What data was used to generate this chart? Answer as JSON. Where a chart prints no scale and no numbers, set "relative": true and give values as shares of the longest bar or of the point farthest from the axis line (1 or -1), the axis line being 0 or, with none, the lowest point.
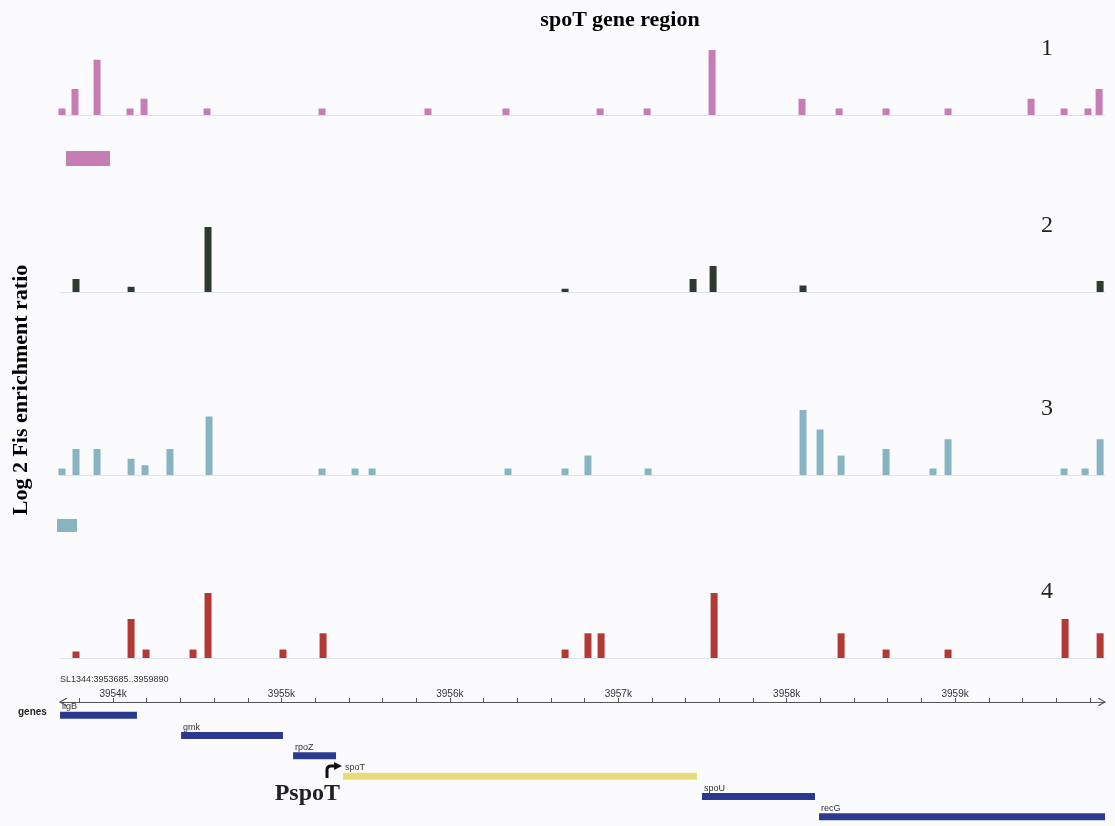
{
  "chart_data": [
    {
      "type": "bar",
      "title": "spoT gene region",
      "relative": true,
      "color": "#c67db4",
      "xlim": [
        3953685,
        3959890
      ],
      "annotations": [
        "1"
      ],
      "x": [
        3953697,
        3953774,
        3953905,
        3954101,
        3954184,
        3954558,
        3955241,
        3955870,
        3956333,
        3956892,
        3957171,
        3957557,
        3958091,
        3958311,
        3958590,
        3958958,
        3959451,
        3959647,
        3959789,
        3959855
      ],
      "values": [
        0.1,
        0.4,
        0.85,
        0.1,
        0.25,
        0.1,
        0.1,
        0.1,
        0.1,
        0.1,
        0.1,
        1,
        0.25,
        0.1,
        0.1,
        0.1,
        0.25,
        0.1,
        0.1,
        0.4
      ]
    },
    {
      "type": "bar",
      "relative": true,
      "color": "#2f3a30",
      "xlim": [
        3953685,
        3959890
      ],
      "annotations": [
        "2"
      ],
      "x": [
        3953780,
        3954107,
        3954564,
        3956684,
        3957444,
        3957563,
        3958097,
        3959861
      ],
      "values": [
        0.2,
        0.08,
        1,
        0.05,
        0.2,
        0.4,
        0.1,
        0.17
      ]
    },
    {
      "type": "bar",
      "ylabel": "Log 2 Fis enrichment ratio",
      "relative": true,
      "color": "#88b4c2",
      "xlim": [
        3953685,
        3959890
      ],
      "annotations": [
        "3"
      ],
      "x": [
        3953697,
        3953780,
        3953905,
        3954107,
        3954190,
        3954338,
        3954570,
        3955241,
        3955437,
        3955538,
        3956345,
        3956684,
        3956820,
        3957177,
        3958097,
        3958198,
        3958323,
        3958590,
        3958869,
        3958958,
        3959647,
        3959772,
        3959861
      ],
      "values": [
        0.1,
        0.4,
        0.4,
        0.25,
        0.15,
        0.4,
        0.9,
        0.1,
        0.1,
        0.1,
        0.1,
        0.1,
        0.3,
        0.1,
        1,
        0.7,
        0.3,
        0.4,
        0.1,
        0.55,
        0.1,
        0.1,
        0.55
      ]
    },
    {
      "type": "bar",
      "relative": true,
      "color": "#b33a34",
      "xlim": [
        3953685,
        3959890
      ],
      "annotations": [
        "4"
      ],
      "x": [
        3953780,
        3954107,
        3954196,
        3954475,
        3954564,
        3955009,
        3955247,
        3956684,
        3956820,
        3956898,
        3957569,
        3958323,
        3958590,
        3958958,
        3959653,
        3959861
      ],
      "values": [
        0.1,
        0.6,
        0.13,
        0.13,
        1,
        0.13,
        0.38,
        0.13,
        0.38,
        0.38,
        1,
        0.38,
        0.13,
        0.13,
        0.6,
        0.38
      ]
    },
    {
      "type": "bar",
      "orientation": "horizontal",
      "title": "genes",
      "categories": [
        "ligB",
        "gmk",
        "rpoZ",
        "spoT",
        "spoU",
        "recG"
      ],
      "xlim": [
        3953685,
        3959890
      ],
      "tick_labels": "x",
      "base": [
        3953685,
        3954404,
        3955069,
        3955365,
        3957497,
        3958192
      ],
      "values": [
        457,
        605,
        255,
        2102,
        671,
        1698
      ],
      "colors": [
        "#2b3a8f",
        "#2b3a8f",
        "#2b3a8f",
        "#e6dc78",
        "#2b3a8f",
        "#2b3a8f"
      ],
      "annotations": [
        "SL1344:3953685..3959890",
        "PspoT"
      ],
      "xticks": [
        {
          "value": 3953800,
          "label": null
        },
        {
          "value": 3954000,
          "label": "3954k"
        },
        {
          "value": 3954200,
          "label": null
        },
        {
          "value": 3954400,
          "label": null
        },
        {
          "value": 3954600,
          "label": null
        },
        {
          "value": 3954800,
          "label": null
        },
        {
          "value": 3955000,
          "label": "3955k"
        },
        {
          "value": 3955200,
          "label": null
        },
        {
          "value": 3955400,
          "label": null
        },
        {
          "value": 3955600,
          "label": null
        },
        {
          "value": 3955800,
          "label": null
        },
        {
          "value": 3956000,
          "label": "3956k"
        },
        {
          "value": 3956200,
          "label": null
        },
        {
          "value": 3956400,
          "label": null
        },
        {
          "value": 3956600,
          "label": null
        },
        {
          "value": 3956800,
          "label": null
        },
        {
          "value": 3957000,
          "label": "3957k"
        },
        {
          "value": 3957200,
          "label": null
        },
        {
          "value": 3957400,
          "label": null
        },
        {
          "value": 3957600,
          "label": null
        },
        {
          "value": 3957800,
          "label": null
        },
        {
          "value": 3958000,
          "label": "3958k"
        },
        {
          "value": 3958200,
          "label": null
        },
        {
          "value": 3958400,
          "label": null
        },
        {
          "value": 3958600,
          "label": null
        },
        {
          "value": 3958800,
          "label": null
        },
        {
          "value": 3959000,
          "label": "3959k"
        },
        {
          "value": 3959200,
          "label": null
        },
        {
          "value": 3959400,
          "label": null
        },
        {
          "value": 3959600,
          "label": null
        },
        {
          "value": 3959800,
          "label": null
        }
      ]
    }
  ]
}
